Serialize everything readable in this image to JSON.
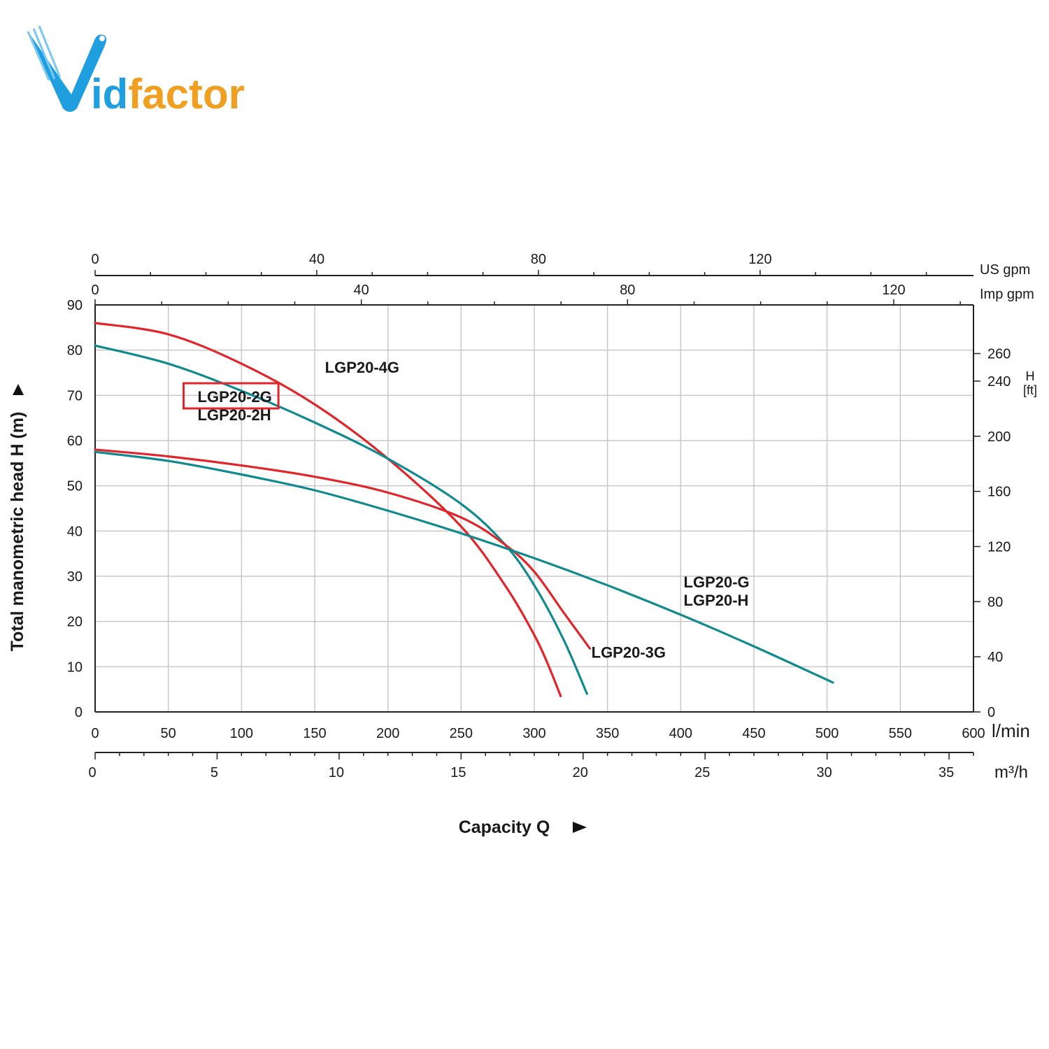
{
  "brand": {
    "logo_text": "Vidfactor",
    "colors": {
      "blue": "#1f9fe0",
      "orange": "#f0a020"
    }
  },
  "chart_data": {
    "type": "line",
    "title": "",
    "xlabel": "Capacity Q",
    "ylabel": "Total manometric head H (m)",
    "xlim": [
      0,
      600
    ],
    "ylim": [
      0,
      90
    ],
    "grid": true,
    "x_unit": "l/min",
    "x_ticks": [
      "0",
      "50",
      "100",
      "150",
      "200",
      "250",
      "300",
      "350",
      "400",
      "450",
      "500",
      "550",
      "600"
    ],
    "y_ticks": [
      "0",
      "10",
      "20",
      "30",
      "40",
      "50",
      "60",
      "70",
      "80",
      "90"
    ],
    "secondary_axes": {
      "m3h": {
        "unit": "m³/h",
        "ticks": [
          0,
          5,
          10,
          15,
          20,
          25,
          30,
          35
        ]
      },
      "us_gpm": {
        "unit": "US gpm",
        "ticks": [
          0,
          40,
          80,
          120
        ]
      },
      "imp_gpm": {
        "unit": "Imp gpm",
        "ticks": [
          0,
          40,
          80,
          120
        ]
      },
      "h_ft": {
        "unit_top": "H",
        "unit_bottom": "[ft]",
        "ticks": [
          0,
          40,
          80,
          120,
          160,
          200,
          240,
          260
        ]
      }
    },
    "series": [
      {
        "name": "LGP20-4G",
        "color": "#e0262b",
        "points": [
          [
            0,
            86
          ],
          [
            50,
            83.5
          ],
          [
            100,
            77
          ],
          [
            150,
            68
          ],
          [
            200,
            56
          ],
          [
            250,
            41
          ],
          [
            280,
            28
          ],
          [
            300,
            17
          ],
          [
            310,
            10
          ],
          [
            318,
            3.5
          ]
        ]
      },
      {
        "name": "LGP20-2G",
        "color": "#118a8f",
        "points": [
          [
            0,
            81
          ],
          [
            50,
            77
          ],
          [
            100,
            71
          ],
          [
            150,
            64
          ],
          [
            200,
            56
          ],
          [
            250,
            46
          ],
          [
            280,
            37
          ],
          [
            300,
            28
          ],
          [
            320,
            16
          ],
          [
            336,
            4
          ]
        ]
      },
      {
        "name": "LGP20-3G",
        "color": "#e0262b",
        "points": [
          [
            0,
            58
          ],
          [
            50,
            56.5
          ],
          [
            100,
            54.5
          ],
          [
            150,
            52
          ],
          [
            200,
            48.5
          ],
          [
            250,
            43
          ],
          [
            280,
            37
          ],
          [
            300,
            31
          ],
          [
            320,
            22
          ],
          [
            338,
            14
          ]
        ]
      },
      {
        "name": "LGP20-G",
        "color": "#118a8f",
        "points": [
          [
            0,
            57.5
          ],
          [
            50,
            55.5
          ],
          [
            100,
            52.5
          ],
          [
            150,
            49
          ],
          [
            200,
            44.5
          ],
          [
            250,
            39.5
          ],
          [
            300,
            34
          ],
          [
            350,
            28
          ],
          [
            400,
            21.5
          ],
          [
            450,
            14.5
          ],
          [
            504,
            6.5
          ]
        ]
      }
    ],
    "annotations": [
      {
        "text": "LGP20-4G",
        "x": 157,
        "y": 75
      },
      {
        "text": "LGP20-2G",
        "x": 70,
        "y": 68.5,
        "boxed": true,
        "box_color": "#e0262b"
      },
      {
        "text": "LGP20-2H",
        "x": 70,
        "y": 64.5
      },
      {
        "text": "LGP20-G",
        "x": 402,
        "y": 27.5
      },
      {
        "text": "LGP20-H",
        "x": 402,
        "y": 23.5
      },
      {
        "text": "LGP20-3G",
        "x": 339,
        "y": 12
      }
    ]
  }
}
